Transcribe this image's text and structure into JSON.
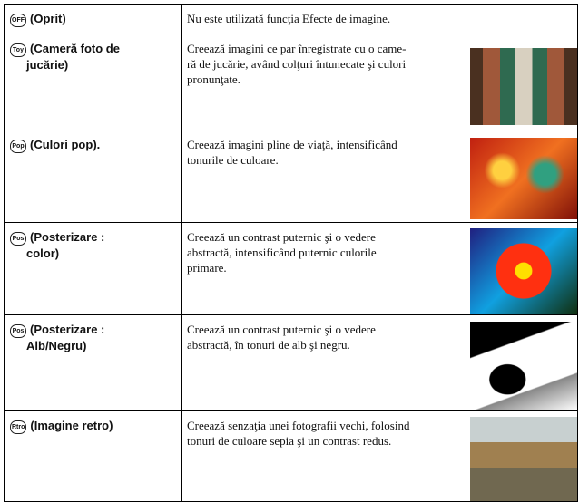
{
  "rows": [
    {
      "icon": "OFF",
      "label": [
        "(Oprit)"
      ],
      "description": [
        "Nu este utilizată funcţia Efecte de imagine."
      ]
    },
    {
      "icon": "Toy",
      "label": [
        "(Cameră foto de",
        "jucărie)"
      ],
      "description": [
        "Creează imagini ce par înregistrate cu o came-",
        "ră de jucărie, având colţuri întunecate şi culori",
        "pronunţate."
      ]
    },
    {
      "icon": "Pop",
      "label": [
        "(Culori pop)."
      ],
      "description": [
        "Creează imagini pline de viaţă, intensificând",
        "tonurile de culoare."
      ]
    },
    {
      "icon": "Pos",
      "label": [
        "(Posterizare :",
        "color)"
      ],
      "description": [
        "Creează un contrast puternic şi o vedere",
        "abstractă, intensificând puternic culorile",
        "primare."
      ]
    },
    {
      "icon": "Pos",
      "label": [
        "(Posterizare :",
        "Alb/Negru)"
      ],
      "description": [
        "Creează un contrast puternic şi o vedere",
        "abstractă, în tonuri de alb şi negru."
      ]
    },
    {
      "icon": "Rtro",
      "label": [
        "(Imagine retro)"
      ],
      "description": [
        "Creează senzaţia unei fotografii vechi, folosind",
        "tonuri de culoare sepia şi un contrast redus."
      ]
    }
  ]
}
